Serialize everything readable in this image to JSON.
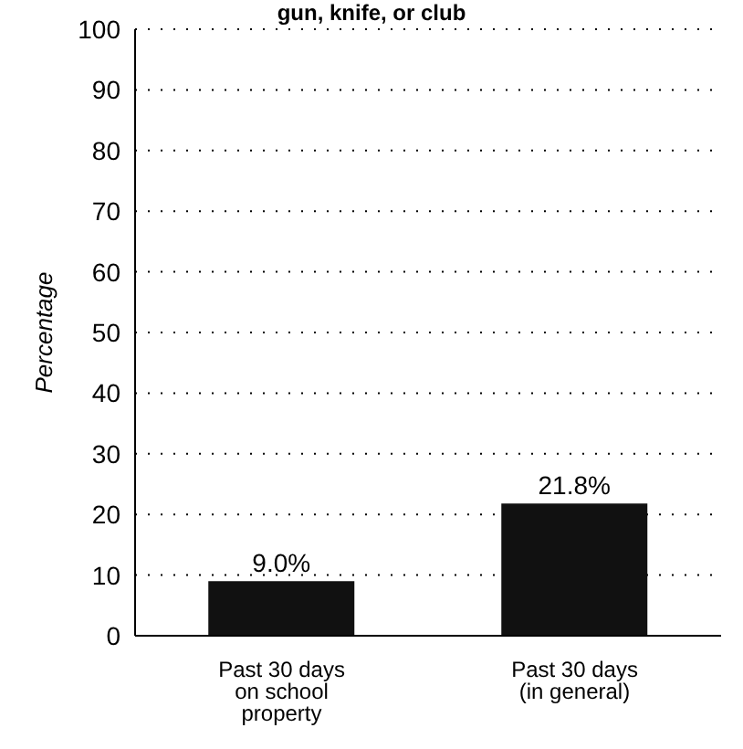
{
  "chart_data": {
    "type": "bar",
    "title": "gun, knife, or club",
    "ylabel": "Percentage",
    "categories": [
      "Past 30 days on school property",
      "Past 30 days (in general)"
    ],
    "values": [
      9.0,
      21.8
    ],
    "value_labels": [
      "9.0%",
      "21.8%"
    ],
    "color": "#111111",
    "ylim": [
      0,
      100
    ],
    "yticks": [
      0,
      10,
      20,
      30,
      40,
      50,
      60,
      70,
      80,
      90,
      100
    ],
    "grid": "y"
  }
}
